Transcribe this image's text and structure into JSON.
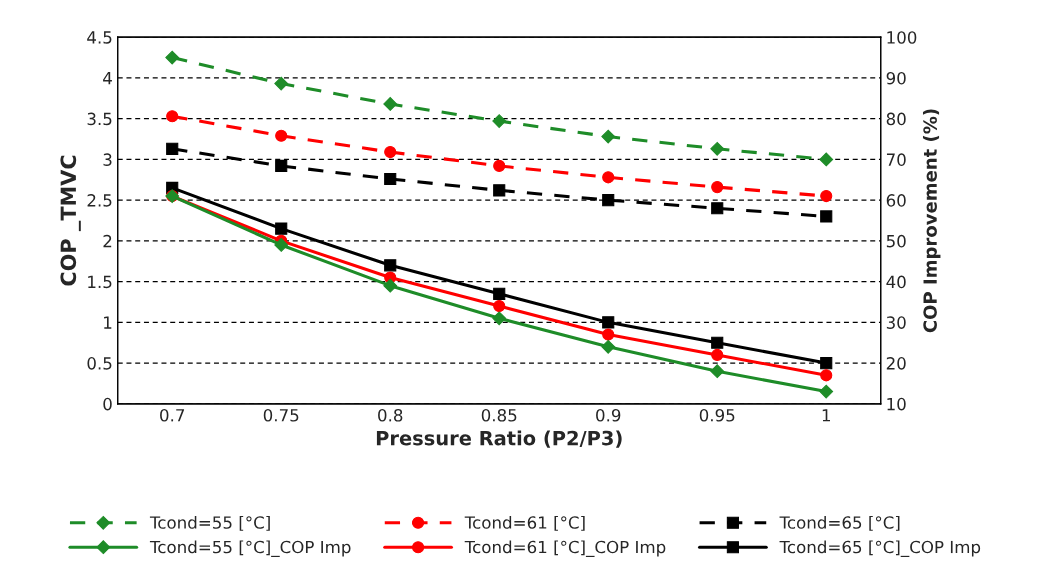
{
  "chart_data": {
    "type": "line",
    "xlabel": "Pressure Ratio (P2/P3)",
    "ylabel": "COP _TMVC",
    "y2label": "COP Improvement (%)",
    "categories": [
      "0.7",
      "0.75",
      "0.8",
      "0.85",
      "0.9",
      "0.95",
      "1"
    ],
    "series": [
      {
        "name": "Tcond=55 [°C]",
        "color": "#1e8c28",
        "marker": "diamond",
        "line_style": "dashed",
        "values": [
          4.25,
          3.93,
          3.68,
          3.47,
          3.28,
          3.13,
          3.0
        ]
      },
      {
        "name": "Tcond=61 [°C]",
        "color": "#ff0000",
        "marker": "circle",
        "line_style": "dashed",
        "values": [
          3.53,
          3.29,
          3.09,
          2.92,
          2.78,
          2.66,
          2.55
        ]
      },
      {
        "name": "Tcond=65 [°C]",
        "color": "#000000",
        "marker": "square",
        "line_style": "dashed",
        "values": [
          3.13,
          2.92,
          2.76,
          2.62,
          2.5,
          2.4,
          2.3
        ]
      },
      {
        "name": "Tcond=55 [°C]_COP Imp",
        "color": "#1e8c28",
        "marker": "diamond",
        "line_style": "solid",
        "axis": "y2",
        "values": [
          61,
          49,
          39,
          31,
          24,
          18,
          13
        ]
      },
      {
        "name": "Tcond=61 [°C]_COP Imp",
        "color": "#ff0000",
        "marker": "circle",
        "line_style": "solid",
        "axis": "y2",
        "values": [
          61,
          50,
          41,
          34,
          27,
          22,
          17
        ]
      },
      {
        "name": "Tcond=65 [°C]_COP Imp",
        "color": "#000000",
        "marker": "square",
        "line_style": "solid",
        "axis": "y2",
        "values": [
          63,
          53,
          44,
          37,
          30,
          25,
          20
        ]
      }
    ],
    "ylim": [
      0,
      4.5
    ],
    "yticks": [
      0,
      0.5,
      1,
      1.5,
      2,
      2.5,
      3,
      3.5,
      4,
      4.5
    ],
    "y2lim": [
      10,
      100
    ],
    "y2ticks": [
      10,
      20,
      30,
      40,
      50,
      60,
      70,
      80,
      90,
      100
    ],
    "grid": "y",
    "legend": "bottom"
  }
}
